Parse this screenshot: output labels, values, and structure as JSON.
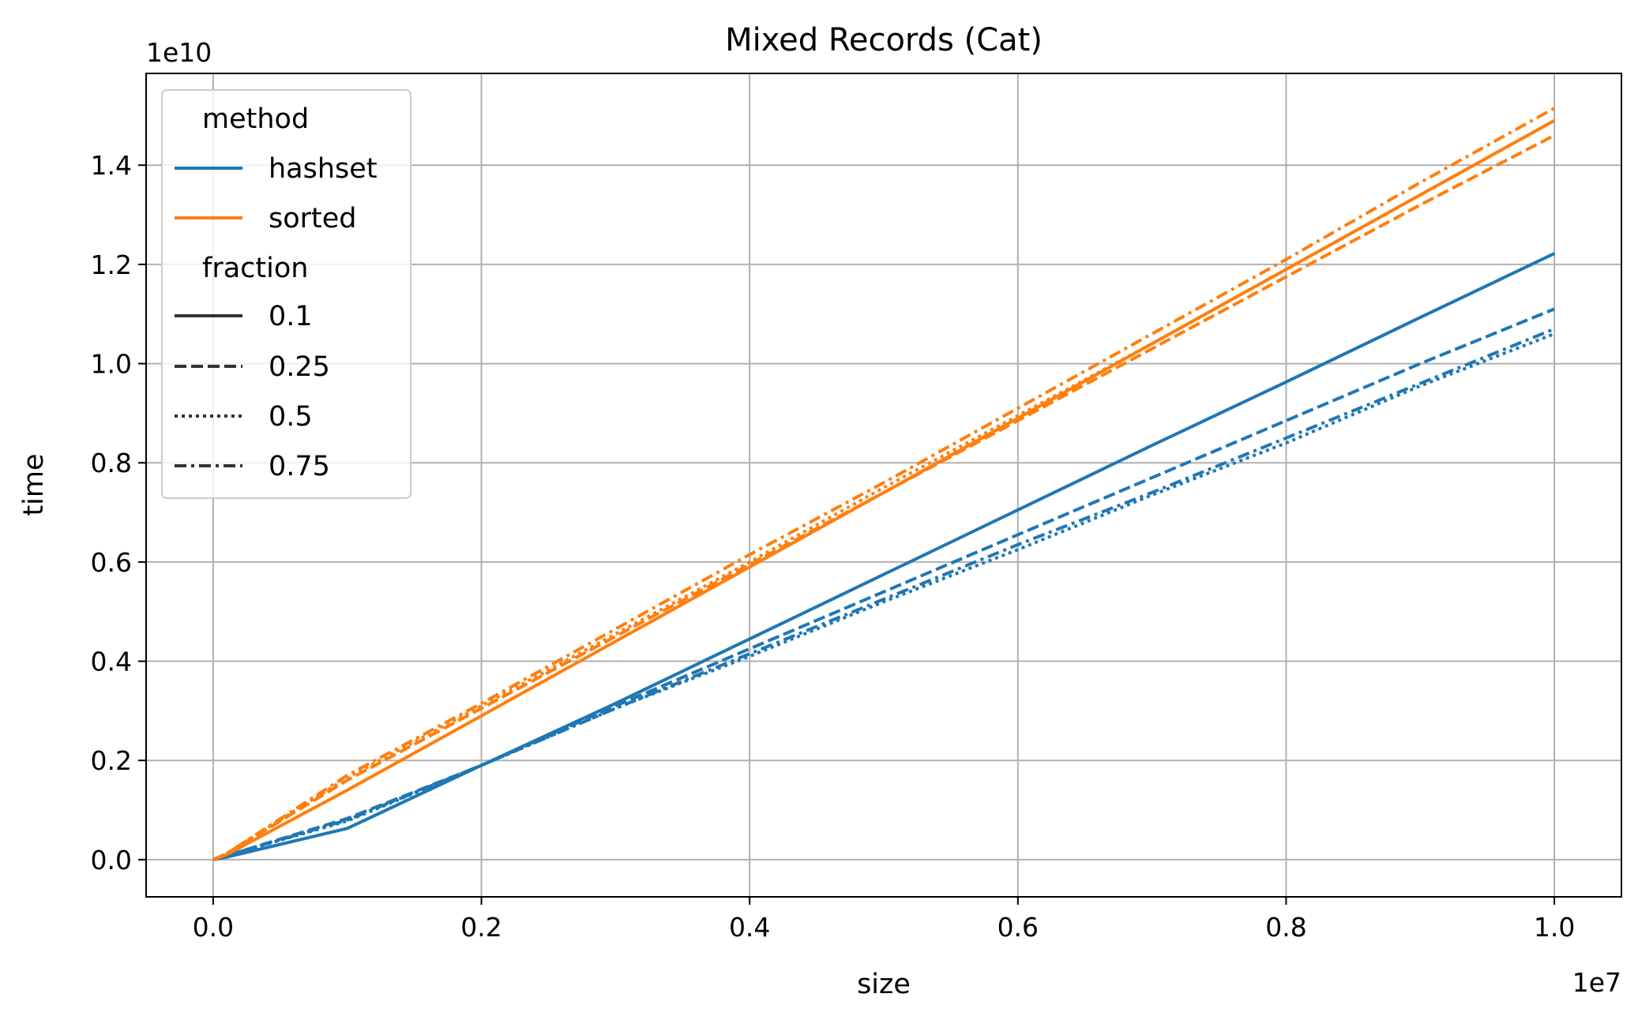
{
  "chart_data": {
    "type": "line",
    "title": "Mixed Records (Cat)",
    "xlabel": "size",
    "ylabel": "time",
    "x_offset_label": "1e7",
    "y_offset_label": "1e10",
    "xlim": [
      -0.05,
      1.05
    ],
    "ylim": [
      -0.075,
      1.585
    ],
    "xticks": [
      0.0,
      0.2,
      0.4,
      0.6,
      0.8,
      1.0
    ],
    "xtick_labels": [
      "0.0",
      "0.2",
      "0.4",
      "0.6",
      "0.8",
      "1.0"
    ],
    "yticks": [
      0.0,
      0.2,
      0.4,
      0.6,
      0.8,
      1.0,
      1.2,
      1.4
    ],
    "ytick_labels": [
      "0.0",
      "0.2",
      "0.4",
      "0.6",
      "0.8",
      "1.0",
      "1.2",
      "1.4"
    ],
    "grid": true,
    "legend": {
      "position": "upper-left",
      "method_title": "method",
      "method_entries": [
        {
          "label": "hashset",
          "color": "#1f77b4"
        },
        {
          "label": "sorted",
          "color": "#ff7f0e"
        }
      ],
      "fraction_title": "fraction",
      "fraction_entries": [
        {
          "label": "0.1",
          "dash": "solid"
        },
        {
          "label": "0.25",
          "dash": "dashed"
        },
        {
          "label": "0.5",
          "dash": "dotted"
        },
        {
          "label": "0.75",
          "dash": "dashdot"
        }
      ]
    },
    "colors": {
      "hashset": "#1f77b4",
      "sorted": "#ff7f0e",
      "legend_neutral": "#333333"
    },
    "series": [
      {
        "method": "hashset",
        "fraction": "0.1",
        "dash": "solid",
        "x": [
          0.0,
          0.01,
          0.1,
          0.2,
          0.3,
          0.4,
          0.5,
          0.6,
          0.7,
          0.8,
          0.9,
          1.0
        ],
        "y": [
          0.0,
          0.005,
          0.063,
          0.19,
          0.315,
          0.445,
          0.575,
          0.705,
          0.835,
          0.963,
          1.093,
          1.222
        ]
      },
      {
        "method": "hashset",
        "fraction": "0.25",
        "dash": "dashed",
        "x": [
          0.0,
          0.01,
          0.1,
          0.2,
          0.3,
          0.4,
          0.5,
          0.6,
          0.7,
          0.8,
          0.9,
          1.0
        ],
        "y": [
          0.0,
          0.008,
          0.083,
          0.19,
          0.31,
          0.425,
          0.54,
          0.655,
          0.77,
          0.885,
          1.0,
          1.11
        ]
      },
      {
        "method": "hashset",
        "fraction": "0.5",
        "dash": "dotted",
        "x": [
          0.0,
          0.01,
          0.1,
          0.2,
          0.3,
          0.4,
          0.5,
          0.6,
          0.7,
          0.8,
          0.9,
          1.0
        ],
        "y": [
          0.0,
          0.008,
          0.078,
          0.19,
          0.305,
          0.41,
          0.52,
          0.625,
          0.735,
          0.84,
          0.955,
          1.06
        ]
      },
      {
        "method": "hashset",
        "fraction": "0.75",
        "dash": "dashdot",
        "x": [
          0.0,
          0.01,
          0.1,
          0.2,
          0.3,
          0.4,
          0.5,
          0.6,
          0.7,
          0.8,
          0.9,
          1.0
        ],
        "y": [
          0.0,
          0.008,
          0.08,
          0.19,
          0.305,
          0.415,
          0.525,
          0.635,
          0.74,
          0.85,
          0.96,
          1.07
        ]
      },
      {
        "method": "sorted",
        "fraction": "0.1",
        "dash": "solid",
        "x": [
          0.0,
          0.01,
          0.1,
          0.2,
          0.3,
          0.4,
          0.5,
          0.6,
          0.7,
          0.8,
          0.9,
          1.0
        ],
        "y": [
          0.0,
          0.01,
          0.14,
          0.29,
          0.44,
          0.59,
          0.74,
          0.89,
          1.04,
          1.19,
          1.34,
          1.49
        ]
      },
      {
        "method": "sorted",
        "fraction": "0.25",
        "dash": "dashed",
        "x": [
          0.0,
          0.01,
          0.1,
          0.2,
          0.3,
          0.4,
          0.5,
          0.6,
          0.7,
          0.8,
          0.9,
          1.0
        ],
        "y": [
          0.0,
          0.012,
          0.16,
          0.305,
          0.45,
          0.595,
          0.74,
          0.885,
          1.03,
          1.175,
          1.32,
          1.46
        ]
      },
      {
        "method": "sorted",
        "fraction": "0.5",
        "dash": "dotted",
        "x": [
          0.0,
          0.01,
          0.1,
          0.2,
          0.3,
          0.4,
          0.5,
          0.6,
          0.7,
          0.8,
          0.9,
          1.0
        ],
        "y": [
          0.0,
          0.012,
          0.165,
          0.31,
          0.455,
          0.6,
          0.75,
          0.895,
          1.04,
          1.19,
          1.34,
          1.49
        ]
      },
      {
        "method": "sorted",
        "fraction": "0.75",
        "dash": "dashdot",
        "x": [
          0.0,
          0.01,
          0.1,
          0.2,
          0.3,
          0.4,
          0.5,
          0.6,
          0.7,
          0.8,
          0.9,
          1.0
        ],
        "y": [
          0.0,
          0.012,
          0.17,
          0.315,
          0.465,
          0.615,
          0.76,
          0.91,
          1.06,
          1.21,
          1.365,
          1.515
        ]
      }
    ]
  }
}
